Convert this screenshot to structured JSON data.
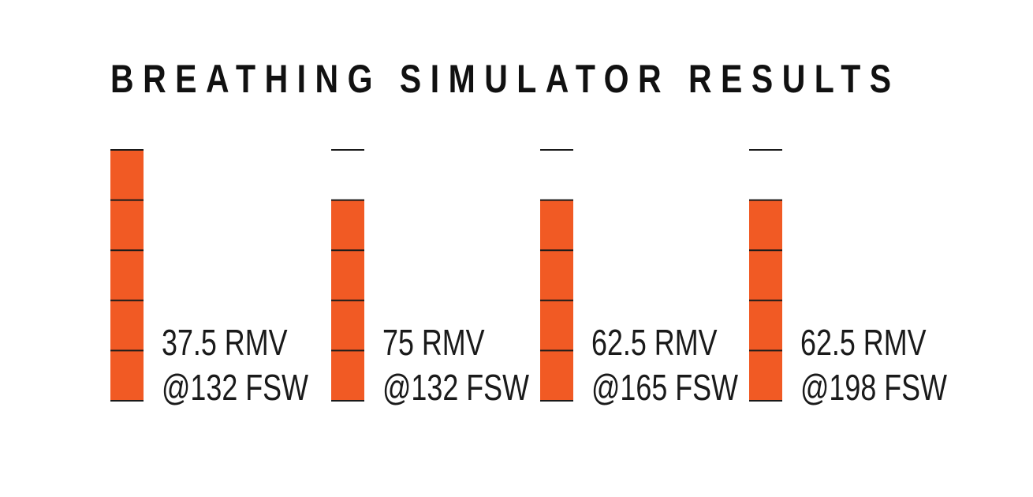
{
  "title": "BREATHING SIMULATOR RESULTS",
  "colors": {
    "segment_fill": "#f15a24",
    "divider": "#1a1a1a",
    "text": "#111111"
  },
  "chart_data": {
    "type": "bar",
    "title": "BREATHING SIMULATOR RESULTS",
    "ylim": [
      0,
      5
    ],
    "grid": false,
    "legend": "none",
    "categories": [
      {
        "line1": "37.5 RMV",
        "line2": "@132 FSW"
      },
      {
        "line1": "75 RMV",
        "line2": "@132 FSW"
      },
      {
        "line1": "62.5 RMV",
        "line2": "@165 FSW"
      },
      {
        "line1": "62.5 RMV",
        "line2": "@198 FSW"
      }
    ],
    "values": [
      5,
      4,
      4,
      4
    ]
  }
}
